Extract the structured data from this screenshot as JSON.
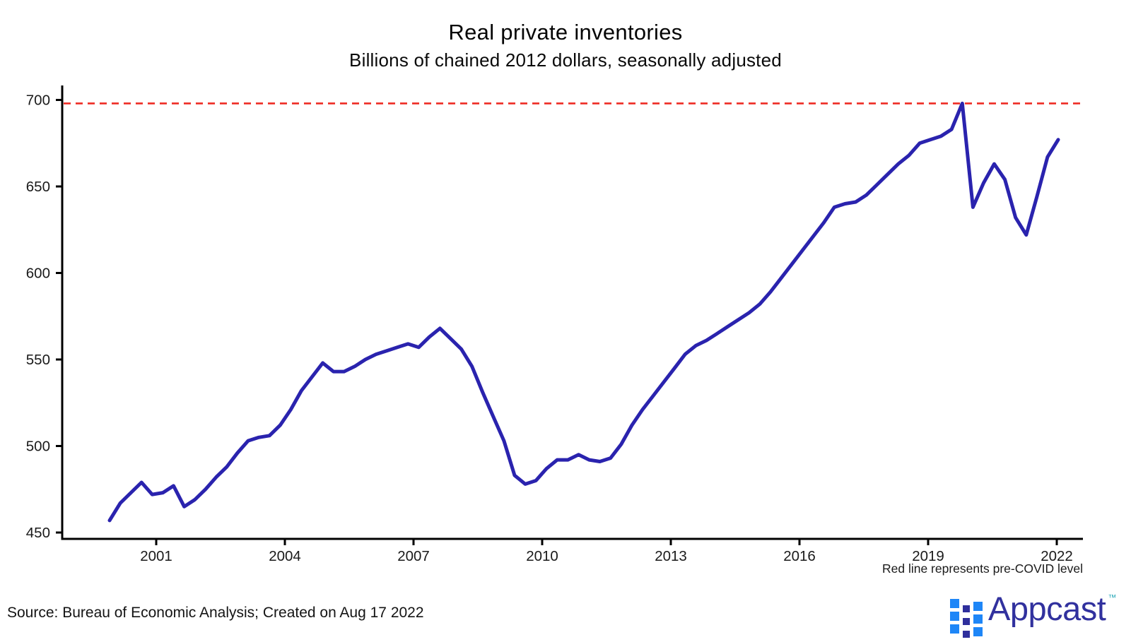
{
  "header": {
    "title": "Real private inventories",
    "subtitle": "Billions of chained 2012 dollars, seasonally adjusted"
  },
  "chart_data": {
    "type": "line",
    "title": "Real private inventories",
    "subtitle": "Billions of chained 2012 dollars, seasonally adjusted",
    "ylabel": "Billions of chained 2012 dollars",
    "frequency": "quarterly",
    "start_period": "2000Q1",
    "end_period": "2022Q2",
    "x_tick_years": [
      2001,
      2004,
      2007,
      2010,
      2013,
      2016,
      2019,
      2022
    ],
    "y_ticks": [
      450,
      500,
      550,
      600,
      650,
      700
    ],
    "ylim": [
      450,
      710
    ],
    "grid": false,
    "legend": "none",
    "reference_line": {
      "value": 698,
      "style": "dashed",
      "color": "#ee2b23",
      "label": "Red line represents pre-COVID level"
    },
    "series": [
      {
        "name": "Real private inventories",
        "color": "#2a23ae",
        "values": [
          457,
          467,
          473,
          479,
          472,
          473,
          477,
          465,
          469,
          475,
          482,
          488,
          496,
          503,
          505,
          506,
          512,
          521,
          532,
          540,
          548,
          543,
          543,
          546,
          550,
          553,
          555,
          557,
          559,
          557,
          563,
          568,
          562,
          556,
          546,
          531,
          517,
          503,
          483,
          478,
          480,
          487,
          492,
          492,
          495,
          492,
          491,
          493,
          501,
          512,
          521,
          529,
          537,
          545,
          553,
          558,
          561,
          565,
          569,
          573,
          577,
          582,
          589,
          597,
          605,
          613,
          621,
          629,
          638,
          640,
          641,
          645,
          651,
          657,
          663,
          668,
          675,
          677,
          679,
          683,
          698,
          638,
          652,
          663,
          654,
          632,
          622,
          644,
          667,
          677
        ]
      }
    ]
  },
  "annotations": {
    "caption": "Red line represents pre-COVID level"
  },
  "footer": {
    "source": "Source: Bureau of Economic Analysis; Created on Aug 17 2022",
    "brand": {
      "name": "Appcast",
      "trademark": "™",
      "wordmark_color": "#31319e",
      "square_blue": "#1e86f7",
      "square_navy": "#2f2f9c",
      "tm_color": "#2aa9b8"
    }
  }
}
